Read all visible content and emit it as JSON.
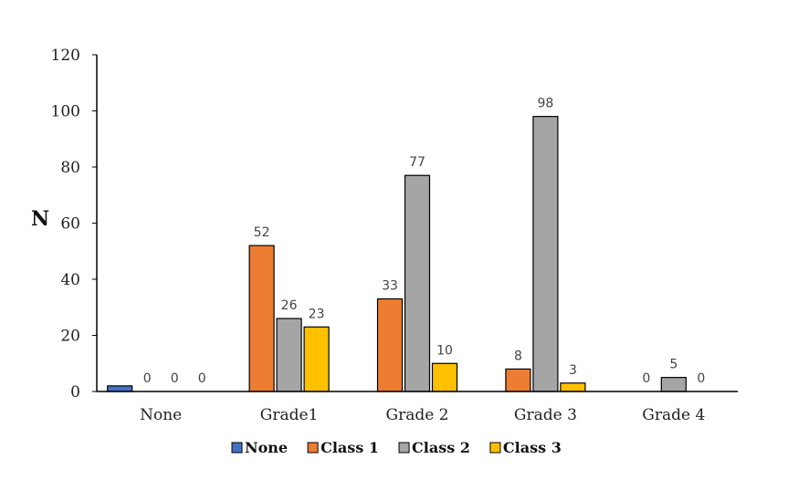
{
  "chart_data": {
    "type": "bar",
    "title": "",
    "xlabel": "",
    "ylabel": "N",
    "ylim": [
      0,
      120
    ],
    "yticks": [
      0,
      20,
      40,
      60,
      80,
      100,
      120
    ],
    "categories": [
      "None",
      "Grade1",
      "Grade 2",
      "Grade 3",
      "Grade 4"
    ],
    "series": [
      {
        "name": "None",
        "color": "#4472C4",
        "values": [
          2,
          null,
          null,
          null,
          null
        ]
      },
      {
        "name": "Class 1",
        "color": "#ED7D31",
        "values": [
          0,
          52,
          33,
          8,
          0
        ]
      },
      {
        "name": "Class 2",
        "color": "#A5A5A5",
        "values": [
          0,
          26,
          77,
          98,
          5
        ]
      },
      {
        "name": "Class 3",
        "color": "#FFC000",
        "values": [
          0,
          23,
          10,
          3,
          0
        ]
      }
    ],
    "legend": "bottom",
    "grid": false
  }
}
